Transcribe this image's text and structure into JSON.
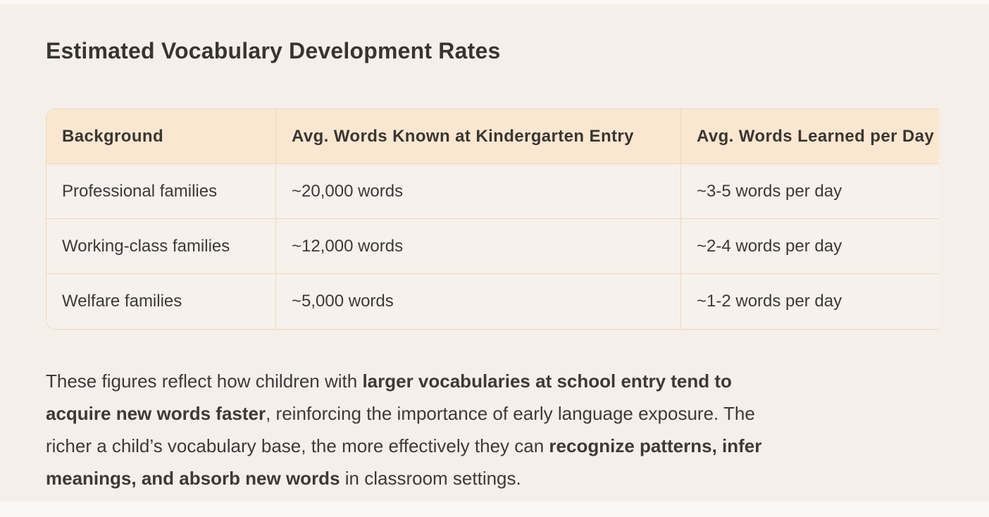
{
  "page": {
    "title": "Estimated Vocabulary Development Rates"
  },
  "table": {
    "columns": [
      "Background",
      "Avg. Words Known at Kindergarten Entry",
      "Avg. Words Learned per Day"
    ],
    "rows": [
      [
        "Professional families",
        "~20,000 words",
        "~3-5 words per day"
      ],
      [
        "Working-class families",
        "~12,000 words",
        "~2-4 words per day"
      ],
      [
        "Welfare families",
        "~5,000 words",
        "~1-2 words per day"
      ]
    ]
  },
  "paragraph": {
    "lines": [
      [
        {
          "text": "These figures reflect how children with ",
          "bold": false
        },
        {
          "text": "larger vocabularies at school entry tend to",
          "bold": true
        }
      ],
      [
        {
          "text": "acquire new words faster",
          "bold": true
        },
        {
          "text": ", reinforcing the importance of early language exposure. The",
          "bold": false
        }
      ],
      [
        {
          "text": "richer a child’s vocabulary base, the more effectively they can ",
          "bold": false
        },
        {
          "text": "recognize patterns, infer",
          "bold": true
        }
      ],
      [
        {
          "text": "meanings, and absorb new words",
          "bold": true
        },
        {
          "text": " in classroom settings.",
          "bold": false
        }
      ]
    ]
  },
  "colors": {
    "outer_background": "#fbf7f4",
    "panel_background": "#f5efe9",
    "table_header_background": "#fbe7d1",
    "table_cell_background": "#f7f1eb",
    "table_border": "#ecd8c3",
    "text": "#3d3935"
  }
}
